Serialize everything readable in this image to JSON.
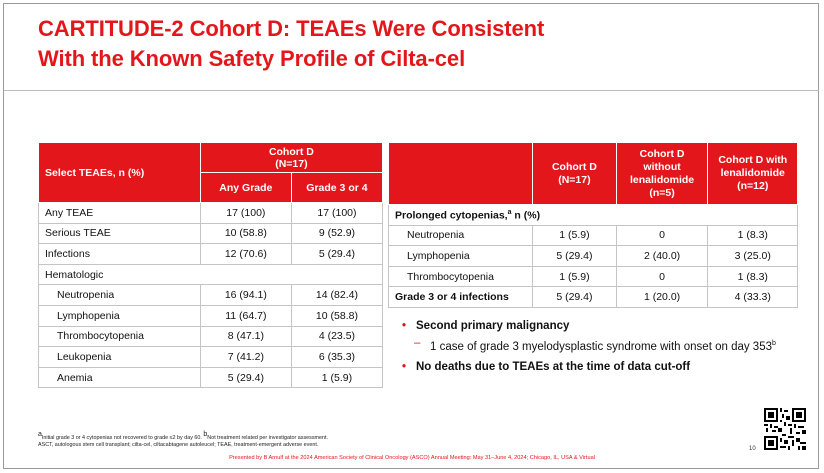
{
  "title_line1": "CARTITUDE-2 Cohort D: TEAEs Were Consistent",
  "title_line2": "With the Known Safety Profile of Cilta-cel",
  "table1": {
    "header_select": "Select TEAEs, n (%)",
    "header_cohort": "Cohort D",
    "header_n": "(N=17)",
    "header_any": "Any Grade",
    "header_grade": "Grade 3 or 4",
    "rows": [
      {
        "label": "Any TEAE",
        "any": "17 (100)",
        "g34": "17 (100)"
      },
      {
        "label": "Serious TEAE",
        "any": "10 (58.8)",
        "g34": "9 (52.9)"
      },
      {
        "label": "Infections",
        "any": "12 (70.6)",
        "g34": "5 (29.4)"
      },
      {
        "label": "Hematologic"
      },
      {
        "label": "Neutropenia",
        "any": "16 (94.1)",
        "g34": "14 (82.4)"
      },
      {
        "label": "Lymphopenia",
        "any": "11 (64.7)",
        "g34": "10 (58.8)"
      },
      {
        "label": "Thrombocytopenia",
        "any": "8 (47.1)",
        "g34": "4 (23.5)"
      },
      {
        "label": "Leukopenia",
        "any": "7 (41.2)",
        "g34": "6 (35.3)"
      },
      {
        "label": "Anemia",
        "any": "5 (29.4)",
        "g34": "1 (5.9)"
      }
    ]
  },
  "table2": {
    "h1": "Cohort D",
    "h1n": "(N=17)",
    "h2a": "Cohort D",
    "h2b": "without",
    "h2c": "lenalidomide",
    "h2n": "(n=5)",
    "h3a": "Cohort D with",
    "h3b": "lenalidomide",
    "h3n": "(n=12)",
    "section_prefix": "Prolonged cytopenias,",
    "section_sup": "a",
    "section_suffix": " n (%)",
    "rows": [
      {
        "label": "Neutropenia",
        "a": "1 (5.9)",
        "b": "0",
        "c": "1 (8.3)"
      },
      {
        "label": "Lymphopenia",
        "a": "5 (29.4)",
        "b": "2 (40.0)",
        "c": "3 (25.0)"
      },
      {
        "label": "Thrombocytopenia",
        "a": "1 (5.9)",
        "b": "0",
        "c": "1 (8.3)"
      }
    ],
    "infections": {
      "label": "Grade 3 or 4 infections",
      "a": "5 (29.4)",
      "b": "1 (20.0)",
      "c": "4 (33.3)"
    }
  },
  "bullets": {
    "b1": "Second primary malignancy",
    "sub1_text": "1 case of grade 3 myelodysplastic syndrome with onset on day 353",
    "sub1_sup": "b",
    "b2": "No deaths due to TEAEs at the time of data cut-off"
  },
  "footnote": {
    "sup_a": "a",
    "text_a": "Initial grade 3 or 4 cytopenias not recovered to grade ≤2 by day 60. ",
    "sup_b": "b",
    "text_b": "Not treatment related per investigator assessment.",
    "line2": "ASCT, autologous stem cell transplant; cilta-cel, ciltacabtagene autoleucel; TEAE, treatment-emergent adverse event."
  },
  "presented": "Presented by B Arnulf at the 2024 American Society of Clinical Oncology (ASCO) Annual Meeting; May 31–June 4, 2024; Chicago, IL, USA & Virtual",
  "page_number": "10",
  "colors": {
    "accent": "#e3171b",
    "border": "#c4c4c4"
  }
}
